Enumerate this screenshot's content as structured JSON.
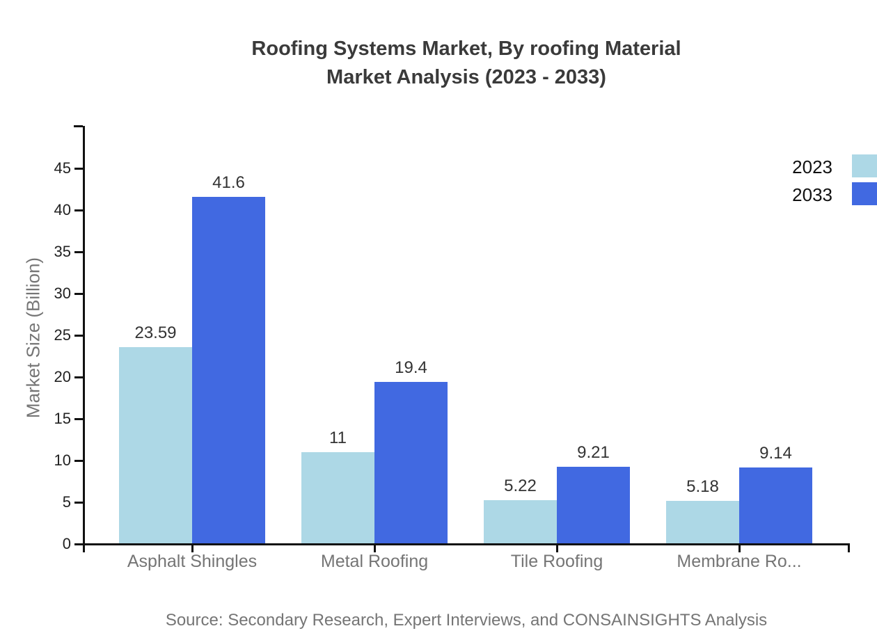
{
  "chart": {
    "title_line1": "Roofing Systems Market, By roofing Material",
    "title_line2": "Market Analysis (2023 - 2033)",
    "source": "Source: Secondary Research, Expert Interviews, and CONSAINSIGHTS Analysis"
  },
  "chart_data": {
    "type": "bar",
    "title": "Roofing Systems Market, By roofing Material Market Analysis (2023 - 2033)",
    "categories": [
      "Asphalt Shingles",
      "Metal Roofing",
      "Tile Roofing",
      "Membrane Ro..."
    ],
    "series": [
      {
        "name": "2023",
        "color": "#ADD8E6",
        "values": [
          23.59,
          11,
          5.22,
          5.18
        ]
      },
      {
        "name": "2033",
        "color": "#4169E1",
        "values": [
          41.6,
          19.4,
          9.21,
          9.14
        ]
      }
    ],
    "xlabel": "",
    "ylabel": "Market Size (Billion)",
    "ylim": [
      0,
      50
    ],
    "yticks": [
      0,
      5,
      10,
      15,
      20,
      25,
      30,
      35,
      40,
      45
    ],
    "grid": false,
    "legend_position": "top-right",
    "value_label_color": "#333333",
    "axis_color": "#111111",
    "text_color_muted": "#757575"
  }
}
